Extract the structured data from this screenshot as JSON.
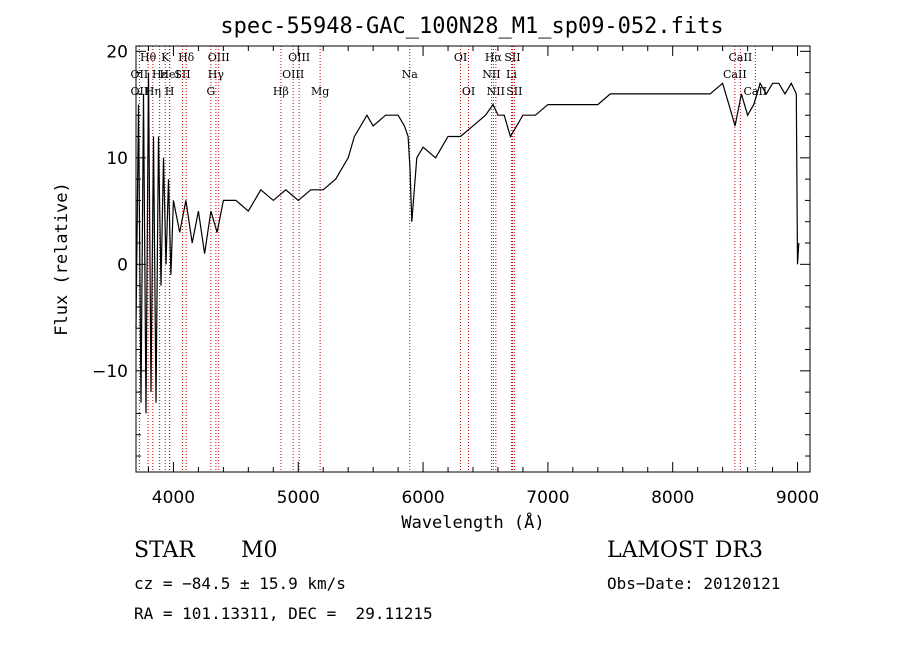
{
  "chart_data": {
    "type": "line",
    "title": "spec-55948-GAC_100N28_M1_sp09-052.fits",
    "xlabel": "Wavelength (Å)",
    "ylabel": "Flux (relative)",
    "xlim": [
      3700,
      9100
    ],
    "ylim": [
      -19.5,
      20.5
    ],
    "x_ticks": [
      4000,
      5000,
      6000,
      7000,
      8000,
      9000
    ],
    "y_ticks": [
      -10,
      0,
      10,
      20
    ],
    "grid": false,
    "colors": {
      "spectrum": "#000000",
      "lines": "#cc0000"
    },
    "series": [
      {
        "x": [
          3700,
          3720,
          3740,
          3760,
          3780,
          3800,
          3820,
          3840,
          3860,
          3880,
          3900,
          3920,
          3940,
          3960,
          3980,
          4000,
          4050,
          4100,
          4150,
          4200,
          4250,
          4300,
          4350,
          4400,
          4500,
          4600,
          4700,
          4800,
          4900,
          5000,
          5100,
          5200,
          5300,
          5400,
          5450,
          5500,
          5550,
          5600,
          5700,
          5800,
          5850,
          5880,
          5895,
          5910,
          5950,
          6000,
          6100,
          6200,
          6300,
          6400,
          6500,
          6560,
          6600,
          6650,
          6700,
          6750,
          6800,
          6900,
          7000,
          7100,
          7200,
          7300,
          7400,
          7500,
          7600,
          7700,
          7800,
          7900,
          8000,
          8100,
          8200,
          8300,
          8400,
          8450,
          8500,
          8550,
          8600,
          8650,
          8700,
          8750,
          8800,
          8850,
          8900,
          8950,
          8990,
          9000,
          9010
        ],
        "y": [
          -6,
          15,
          -13,
          16,
          -14,
          18,
          -12,
          12,
          -13,
          12,
          -2,
          10,
          0,
          8,
          -1,
          6,
          3,
          6,
          2,
          5,
          1,
          5,
          3,
          6,
          6,
          5,
          7,
          6,
          7,
          6,
          7,
          7,
          8,
          10,
          12,
          13,
          14,
          13,
          14,
          14,
          13,
          12,
          9,
          4,
          10,
          11,
          10,
          12,
          12,
          13,
          14,
          15,
          14,
          14,
          12,
          13,
          14,
          14,
          15,
          15,
          15,
          15,
          15,
          16,
          16,
          16,
          16,
          16,
          16,
          16,
          16,
          16,
          17,
          15,
          13,
          16,
          14,
          15,
          17,
          16,
          17,
          17,
          16,
          17,
          16,
          0,
          2
        ]
      }
    ],
    "spectral_lines": [
      {
        "label": "Hθ",
        "wavelength": 3797,
        "row": 1
      },
      {
        "label": "K",
        "wavelength": 3934,
        "row": 1
      },
      {
        "label": "Hδ",
        "wavelength": 4102,
        "row": 1
      },
      {
        "label": "OIII",
        "wavelength": 4363,
        "row": 1
      },
      {
        "label": "OIII",
        "wavelength": 5007,
        "row": 1
      },
      {
        "label": "OI",
        "wavelength": 6300,
        "row": 1
      },
      {
        "label": "Hα",
        "wavelength": 6563,
        "row": 1
      },
      {
        "label": "SII",
        "wavelength": 6716,
        "row": 1
      },
      {
        "label": "CaII",
        "wavelength": 8542,
        "row": 1
      },
      {
        "label": "OII",
        "wavelength": 3727,
        "row": 2
      },
      {
        "label": "Hε",
        "wavelength": 3889,
        "row": 2
      },
      {
        "label": "HeI",
        "wavelength": 3970,
        "row": 2
      },
      {
        "label": "SII",
        "wavelength": 4072,
        "row": 2
      },
      {
        "label": "Hγ",
        "wavelength": 4340,
        "row": 2
      },
      {
        "label": "OIII",
        "wavelength": 4959,
        "row": 2
      },
      {
        "label": "Na",
        "wavelength": 5893,
        "row": 2
      },
      {
        "label": "NII",
        "wavelength": 6548,
        "row": 2
      },
      {
        "label": "Li",
        "wavelength": 6708,
        "row": 2
      },
      {
        "label": "CaII",
        "wavelength": 8498,
        "row": 2
      },
      {
        "label": "OII",
        "wavelength": 3727,
        "row": 3
      },
      {
        "label": "Hη",
        "wavelength": 3835,
        "row": 3
      },
      {
        "label": "H",
        "wavelength": 3969,
        "row": 3
      },
      {
        "label": "G",
        "wavelength": 4300,
        "row": 3
      },
      {
        "label": "Hβ",
        "wavelength": 4861,
        "row": 3
      },
      {
        "label": "Mg",
        "wavelength": 5175,
        "row": 3
      },
      {
        "label": "OI",
        "wavelength": 6364,
        "row": 3
      },
      {
        "label": "NII",
        "wavelength": 6583,
        "row": 3
      },
      {
        "label": "SII",
        "wavelength": 6731,
        "row": 3
      },
      {
        "label": "CaII",
        "wavelength": 8662,
        "row": 3
      }
    ]
  },
  "info": {
    "class": "STAR",
    "subclass": "M0",
    "survey": "LAMOST DR3",
    "cz": "cz = −84.5 ± 15.9 km/s",
    "obs_date": "Obs−Date: 20120121",
    "coords": "RA = 101.13311, DEC =  29.11215"
  }
}
